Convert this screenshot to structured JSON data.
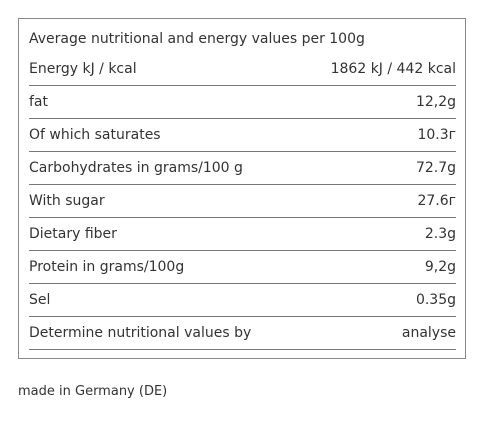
{
  "header": {
    "title": "Average nutritional and energy values per 100g"
  },
  "table": {
    "rows": [
      [
        "Energy kJ / kcal",
        "1862 kJ / 442 kcal"
      ],
      [
        "fat",
        "12,2g"
      ],
      [
        "Of which saturates",
        "10.3г"
      ],
      [
        "Carbohydrates in grams/100 g",
        "72.7g"
      ],
      [
        "With sugar",
        "27.6г"
      ],
      [
        "Dietary fiber",
        "2.3g"
      ],
      [
        "Protein in grams/100g",
        "9,2g"
      ],
      [
        "Sel",
        "0.35g"
      ],
      [
        "Determine nutritional values by",
        "analyse"
      ]
    ]
  },
  "footer": {
    "text": "made in Germany (DE)"
  }
}
